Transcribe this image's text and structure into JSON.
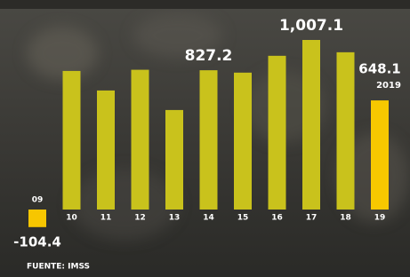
{
  "chart_data": {
    "type": "bar",
    "categories": [
      "09",
      "10",
      "11",
      "12",
      "13",
      "14",
      "15",
      "16",
      "17",
      "18",
      "19"
    ],
    "values": [
      -104.4,
      823,
      707,
      830,
      591,
      827.2,
      813,
      913,
      1007.1,
      934,
      648.1
    ],
    "value_labels": [
      "-104.4",
      null,
      null,
      null,
      null,
      "827.2",
      null,
      null,
      "1,007.1",
      null,
      "648.1"
    ],
    "colors": [
      "#f7c600",
      "#c9c21c",
      "#c9c21c",
      "#c9c21c",
      "#c9c21c",
      "#c9c21c",
      "#c9c21c",
      "#c9c21c",
      "#c9c21c",
      "#c9c21c",
      "#f7c800"
    ],
    "annotation": "2019",
    "source": "FUENTE: IMSS"
  }
}
